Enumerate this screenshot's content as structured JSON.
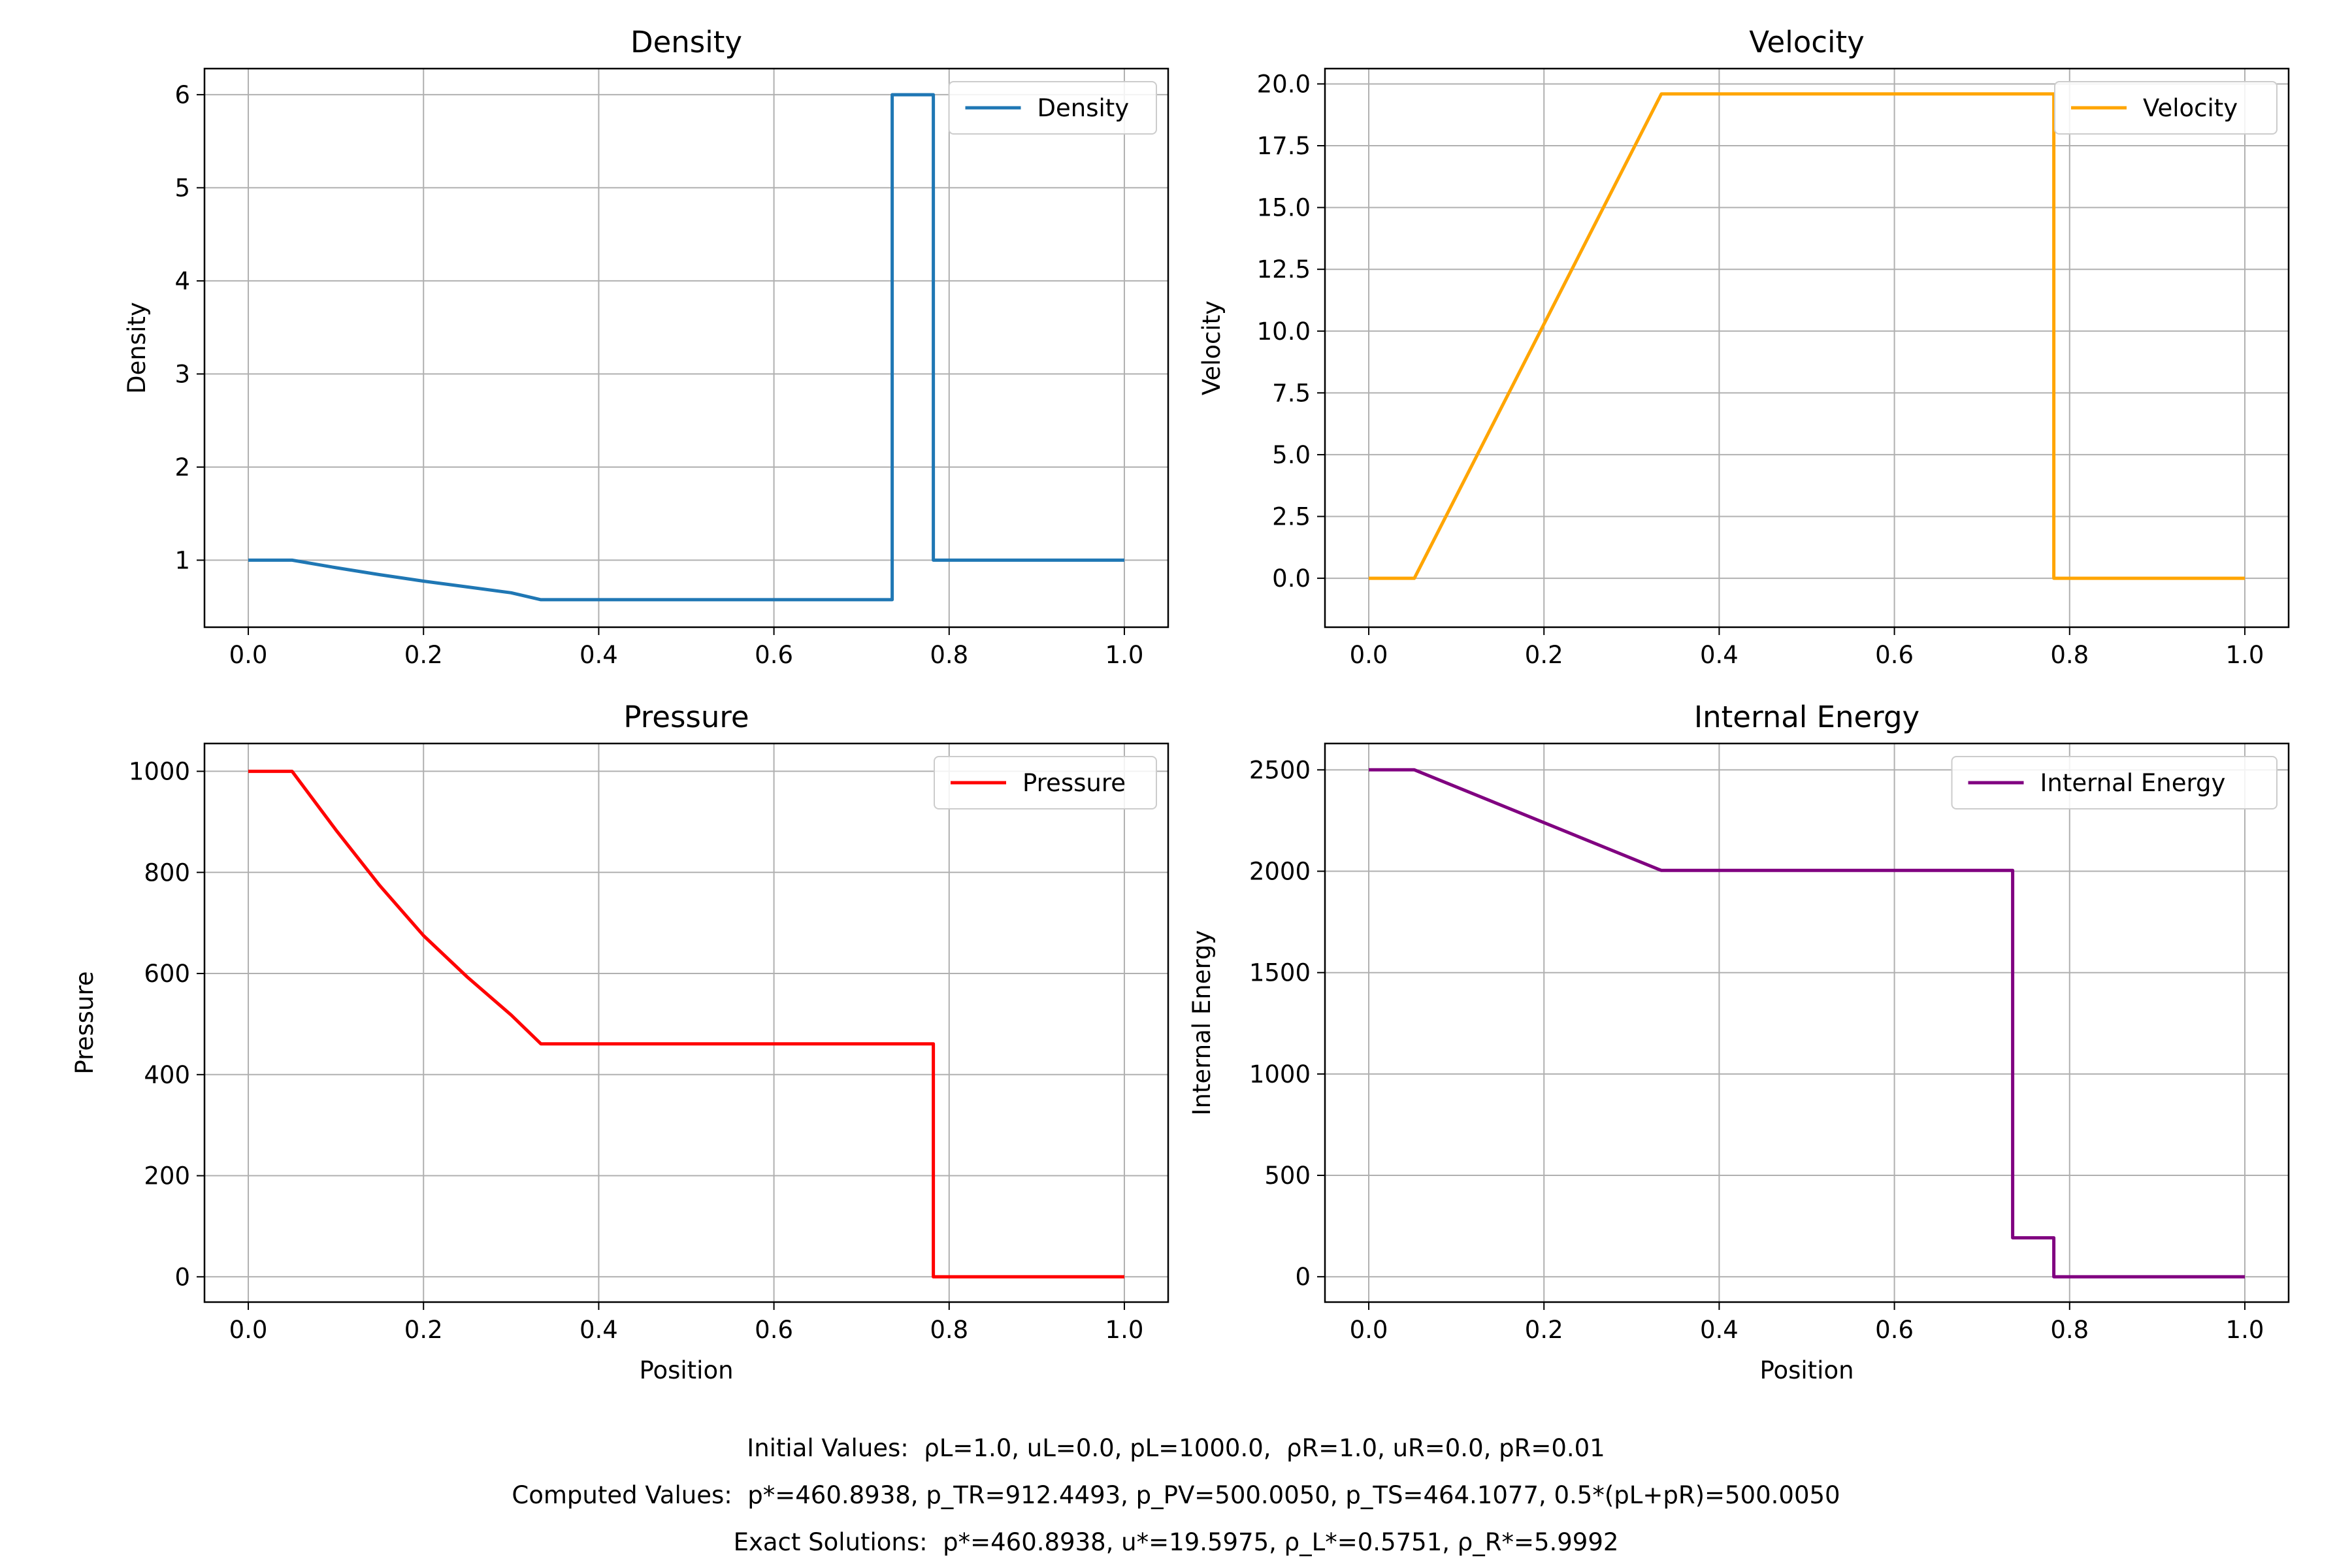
{
  "chart_data": [
    {
      "type": "line",
      "title": "Density",
      "xlabel": "",
      "ylabel": "Density",
      "xlim": [
        -0.05,
        1.05
      ],
      "ylim": [
        0.28,
        6.28
      ],
      "xticks": [
        0.0,
        0.2,
        0.4,
        0.6,
        0.8,
        1.0
      ],
      "yticks": [
        1,
        2,
        3,
        4,
        5,
        6
      ],
      "xtick_labels": [
        "0.0",
        "0.2",
        "0.4",
        "0.6",
        "0.8",
        "1.0"
      ],
      "ytick_labels": [
        "1",
        "2",
        "3",
        "4",
        "5",
        "6"
      ],
      "grid": true,
      "legend": "upper-right",
      "color": "#1f77b4",
      "series": [
        {
          "name": "Density",
          "x": [
            0.0,
            0.05,
            0.1,
            0.15,
            0.2,
            0.25,
            0.3,
            0.334,
            0.4,
            0.5,
            0.6,
            0.7,
            0.735,
            0.735,
            0.782,
            0.782,
            0.9,
            1.0
          ],
          "y": [
            1.0,
            1.0,
            0.919,
            0.844,
            0.775,
            0.712,
            0.65,
            0.5751,
            0.5751,
            0.5751,
            0.5751,
            0.5751,
            0.5751,
            5.9992,
            5.9992,
            1.0,
            1.0,
            1.0
          ]
        }
      ]
    },
    {
      "type": "line",
      "title": "Velocity",
      "xlabel": "",
      "ylabel": "Velocity",
      "xlim": [
        -0.05,
        1.05
      ],
      "ylim": [
        -1.98,
        20.62
      ],
      "xticks": [
        0.0,
        0.2,
        0.4,
        0.6,
        0.8,
        1.0
      ],
      "yticks": [
        0.0,
        2.5,
        5.0,
        7.5,
        10.0,
        12.5,
        15.0,
        17.5,
        20.0
      ],
      "xtick_labels": [
        "0.0",
        "0.2",
        "0.4",
        "0.6",
        "0.8",
        "1.0"
      ],
      "ytick_labels": [
        "0.0",
        "2.5",
        "5.0",
        "7.5",
        "10.0",
        "12.5",
        "15.0",
        "17.5",
        "20.0"
      ],
      "grid": true,
      "legend": "upper-right",
      "color": "#ffa500",
      "series": [
        {
          "name": "Velocity",
          "x": [
            0.0,
            0.052,
            0.334,
            0.782,
            0.782,
            1.0
          ],
          "y": [
            0.0,
            0.0,
            19.5975,
            19.5975,
            0.0,
            0.0
          ]
        }
      ]
    },
    {
      "type": "line",
      "title": "Pressure",
      "xlabel": "Position",
      "ylabel": "Pressure",
      "xlim": [
        -0.05,
        1.05
      ],
      "ylim": [
        -50,
        1055
      ],
      "xticks": [
        0.0,
        0.2,
        0.4,
        0.6,
        0.8,
        1.0
      ],
      "yticks": [
        0,
        200,
        400,
        600,
        800,
        1000
      ],
      "xtick_labels": [
        "0.0",
        "0.2",
        "0.4",
        "0.6",
        "0.8",
        "1.0"
      ],
      "ytick_labels": [
        "0",
        "200",
        "400",
        "600",
        "800",
        "1000"
      ],
      "grid": true,
      "legend": "upper-right",
      "color": "#ff0000",
      "series": [
        {
          "name": "Pressure",
          "x": [
            0.0,
            0.05,
            0.1,
            0.15,
            0.2,
            0.25,
            0.3,
            0.334,
            0.5,
            0.7,
            0.782,
            0.782,
            0.9,
            1.0
          ],
          "y": [
            1000,
            1000,
            884,
            774,
            675,
            593,
            518,
            460.8938,
            460.8938,
            460.8938,
            460.8938,
            0.01,
            0.01,
            0.01
          ]
        }
      ]
    },
    {
      "type": "line",
      "title": "Internal Energy",
      "xlabel": "Position",
      "ylabel": "Internal Energy",
      "xlim": [
        -0.05,
        1.05
      ],
      "ylim": [
        -125,
        2630
      ],
      "xticks": [
        0.0,
        0.2,
        0.4,
        0.6,
        0.8,
        1.0
      ],
      "yticks": [
        0,
        500,
        1000,
        1500,
        2000,
        2500
      ],
      "xtick_labels": [
        "0.0",
        "0.2",
        "0.4",
        "0.6",
        "0.8",
        "1.0"
      ],
      "ytick_labels": [
        "0",
        "500",
        "1000",
        "1500",
        "2000",
        "2500"
      ],
      "grid": true,
      "legend": "upper-right",
      "color": "#800080",
      "series": [
        {
          "name": "Internal Energy",
          "x": [
            0.0,
            0.052,
            0.334,
            0.735,
            0.735,
            0.782,
            0.782,
            1.0
          ],
          "y": [
            2500,
            2500,
            2004,
            2004,
            192,
            192,
            0.025,
            0.025
          ]
        }
      ]
    }
  ],
  "footer": {
    "initial": "Initial Values:  ρL=1.0, uL=0.0, pL=1000.0,  ρR=1.0, uR=0.0, pR=0.01",
    "computed": "Computed Values:  p*=460.8938, p_TR=912.4493, p_PV=500.0050, p_TS=464.1077, 0.5*(pL+pR)=500.0050",
    "exact": "Exact Solutions:  p*=460.8938, u*=19.5975, ρ_L*=0.5751, ρ_R*=5.9992"
  }
}
